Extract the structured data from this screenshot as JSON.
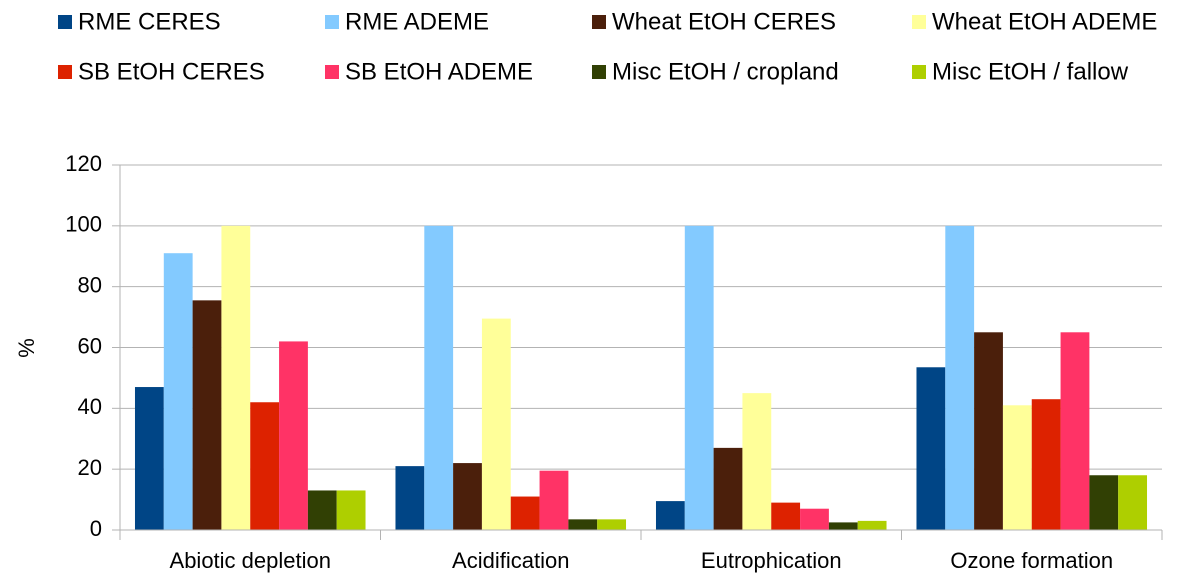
{
  "chart_data": {
    "type": "bar",
    "categories": [
      "Abiotic depletion",
      "Acidification",
      "Eutrophication",
      "Ozone formation"
    ],
    "series": [
      {
        "name": "RME CERES",
        "color": "#004586",
        "values": [
          47,
          21,
          9.5,
          53.5
        ]
      },
      {
        "name": "RME ADEME",
        "color": "#83caff",
        "values": [
          91,
          100,
          100,
          100
        ]
      },
      {
        "name": "Wheat EtOH CERES",
        "color": "#4b1f0b",
        "values": [
          75.5,
          22,
          27,
          65
        ]
      },
      {
        "name": "Wheat EtOH ADEME",
        "color": "#ffff99",
        "values": [
          100,
          69.5,
          45,
          41
        ]
      },
      {
        "name": "SB EtOH CERES",
        "color": "#dd2200",
        "values": [
          42,
          11,
          9,
          43
        ]
      },
      {
        "name": "SB EtOH ADEME",
        "color": "#ff3366",
        "values": [
          62,
          19.5,
          7,
          65
        ]
      },
      {
        "name": "Misc EtOH / cropland",
        "color": "#314004",
        "values": [
          13,
          3.5,
          2.5,
          18
        ]
      },
      {
        "name": "Misc EtOH / fallow",
        "color": "#aecf00",
        "values": [
          13,
          3.5,
          3,
          18
        ]
      }
    ],
    "y_label": "%",
    "ylim": [
      0,
      120
    ],
    "yticks": [
      0,
      20,
      40,
      60,
      80,
      100,
      120
    ],
    "grid": true,
    "legend": "top"
  }
}
